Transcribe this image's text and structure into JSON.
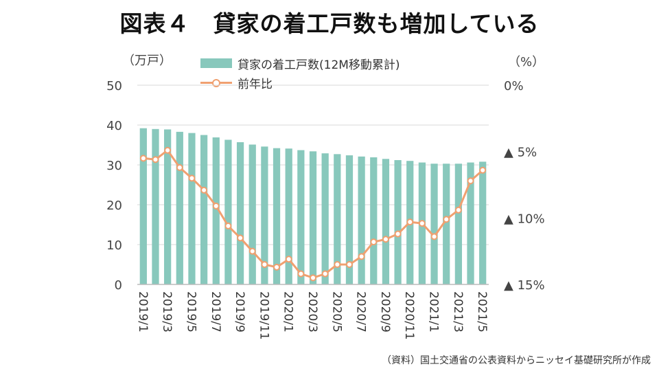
{
  "title": "図表４　貸家の着工戸数も増加している",
  "units": {
    "left": "（万戸）",
    "right": "（%）"
  },
  "legend": {
    "bar": "貸家の着工戸数(12M移動累計)",
    "line": "前年比"
  },
  "source": "（資料）国土交通省の公表資料からニッセイ基礎研究所が作成",
  "colors": {
    "bar": "#88c8bc",
    "line": "#f0a070",
    "axis": "#bbbbbb",
    "grid": "#d9d9d9"
  },
  "chart_data": {
    "type": "bar+line",
    "categories": [
      "2019/1",
      "2019/2",
      "2019/3",
      "2019/4",
      "2019/5",
      "2019/6",
      "2019/7",
      "2019/8",
      "2019/9",
      "2019/10",
      "2019/11",
      "2019/12",
      "2020/1",
      "2020/2",
      "2020/3",
      "2020/4",
      "2020/5",
      "2020/6",
      "2020/7",
      "2020/8",
      "2020/9",
      "2020/10",
      "2020/11",
      "2020/12",
      "2021/1",
      "2021/2",
      "2021/3",
      "2021/4",
      "2021/5"
    ],
    "x_tick_labels": [
      "2019/1",
      "2019/3",
      "2019/5",
      "2019/7",
      "2019/9",
      "2019/11",
      "2020/1",
      "2020/3",
      "2020/5",
      "2020/7",
      "2020/9",
      "2020/11",
      "2021/1",
      "2021/3",
      "2021/5"
    ],
    "series": [
      {
        "name": "貸家の着工戸数(12M移動累計)",
        "type": "bar",
        "axis": "left",
        "values": [
          39.2,
          39.0,
          38.9,
          38.3,
          38.0,
          37.5,
          36.9,
          36.3,
          35.7,
          35.1,
          34.6,
          34.2,
          34.1,
          33.7,
          33.4,
          32.9,
          32.7,
          32.4,
          32.1,
          31.9,
          31.5,
          31.2,
          31.0,
          30.6,
          30.3,
          30.3,
          30.3,
          30.6,
          30.8
        ]
      },
      {
        "name": "前年比",
        "type": "line",
        "axis": "right",
        "values": [
          -5.5,
          -5.6,
          -4.9,
          -6.2,
          -7.0,
          -7.9,
          -9.1,
          -10.6,
          -11.5,
          -12.5,
          -13.5,
          -13.7,
          -13.1,
          -14.2,
          -14.5,
          -14.2,
          -13.5,
          -13.5,
          -12.9,
          -11.8,
          -11.6,
          -11.2,
          -10.3,
          -10.4,
          -11.4,
          -10.1,
          -9.4,
          -7.2,
          -6.4
        ]
      }
    ],
    "left_axis": {
      "label": "（万戸）",
      "ylim": [
        0,
        50
      ],
      "ticks": [
        "0",
        "10",
        "20",
        "30",
        "40",
        "50"
      ]
    },
    "right_axis": {
      "label": "（%）",
      "ylim": [
        -15,
        0
      ],
      "ticks": [
        "0%",
        "▲ 5%",
        "▲ 10%",
        "▲ 15%"
      ]
    },
    "grid": true
  }
}
